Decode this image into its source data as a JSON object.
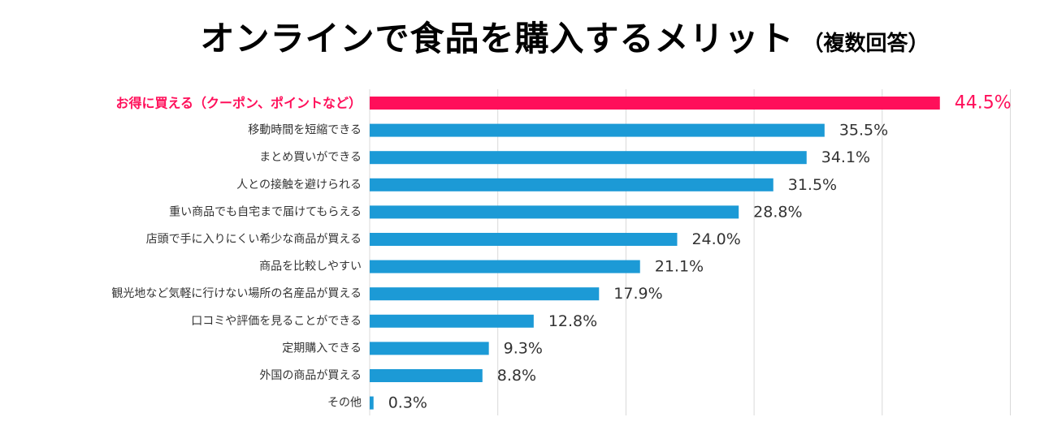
{
  "title": "オンラインで食品を購入するメリット",
  "subtitle": "（複数回答）",
  "colors": {
    "highlight": "#ff0f5a",
    "bar": "#1c9ad6",
    "grid": "#d9d9d9",
    "label": "#333333"
  },
  "chart_data": {
    "type": "bar",
    "orientation": "horizontal",
    "title": "オンラインで食品を購入するメリット",
    "subtitle": "（複数回答）",
    "xlim": [
      0,
      50
    ],
    "grid": true,
    "categories": [
      "お得に買える（クーポン、ポイントなど）",
      "移動時間を短縮できる",
      "まとめ買いができる",
      "人との接触を避けられる",
      "重い商品でも自宅まで届けてもらえる",
      "店頭で手に入りにくい希少な商品が買える",
      "商品を比較しやすい",
      "観光地など気軽に行けない場所の名産品が買える",
      "口コミや評価を見ることができる",
      "定期購入できる",
      "外国の商品が買える",
      "その他"
    ],
    "values": [
      44.5,
      35.5,
      34.1,
      31.5,
      28.8,
      24.0,
      21.1,
      17.9,
      12.8,
      9.3,
      8.8,
      0.3
    ],
    "value_labels": [
      "44.5%",
      "35.5%",
      "34.1%",
      "31.5%",
      "28.8%",
      "24.0%",
      "21.1%",
      "17.9%",
      "12.8%",
      "9.3%",
      "8.8%",
      "0.3%"
    ],
    "highlight_index": 0
  }
}
